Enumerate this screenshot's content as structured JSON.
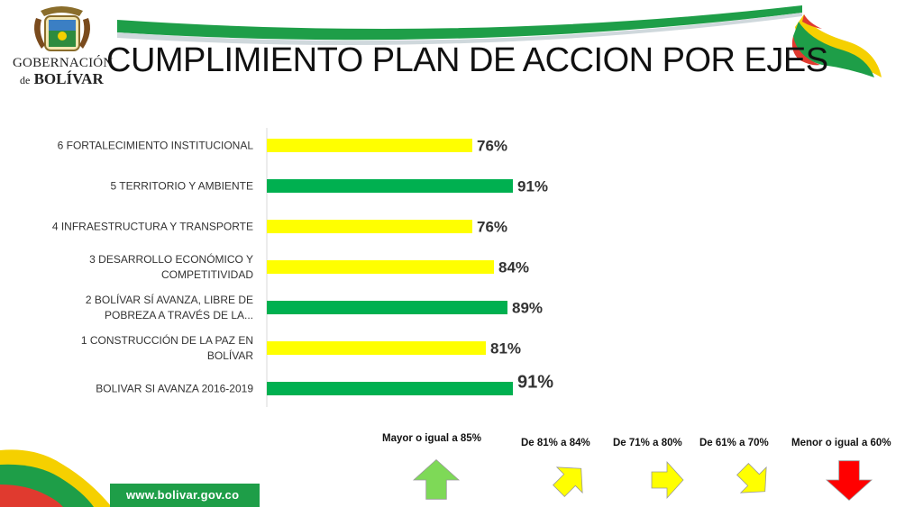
{
  "header": {
    "org_line1": "GOBERNACIÓN",
    "org_line2_de": "de",
    "org_line2_name": "BOLÍVAR",
    "title": "CUMPLIMIENTO PLAN DE ACCION POR EJES"
  },
  "footer": {
    "url": "www.bolivar.gov.co"
  },
  "colors": {
    "yellow": "#ffff00",
    "green": "#00b050",
    "up_arrow": "#7ed957",
    "diag_arrow": "#ffff00",
    "down_arrow": "#ff0000"
  },
  "chart_data": {
    "type": "bar",
    "orientation": "horizontal",
    "title": "CUMPLIMIENTO PLAN DE ACCION POR EJES",
    "categories": [
      [
        "6 FORTALECIMIENTO INSTITUCIONAL"
      ],
      [
        "5 TERRITORIO Y AMBIENTE"
      ],
      [
        "4 INFRAESTRUCTURA Y TRANSPORTE"
      ],
      [
        "3 DESARROLLO ECONÓMICO Y",
        "COMPETITIVIDAD"
      ],
      [
        "2 BOLÍVAR SÍ AVANZA, LIBRE DE",
        "POBREZA A TRAVÉS DE LA..."
      ],
      [
        "1 CONSTRUCCIÓN DE LA PAZ EN",
        "BOLÍVAR"
      ],
      [
        "BOLIVAR SI AVANZA 2016-2019"
      ]
    ],
    "values": [
      76,
      91,
      76,
      84,
      89,
      81,
      91
    ],
    "value_labels": [
      "76%",
      "91%",
      "76%",
      "84%",
      "89%",
      "81%",
      "91%"
    ],
    "bar_colors": [
      "yellow",
      "green",
      "yellow",
      "yellow",
      "green",
      "yellow",
      "green"
    ],
    "xlim": [
      0,
      100
    ],
    "xlabel": "",
    "ylabel": "",
    "grid": false
  },
  "legend": {
    "items": [
      {
        "label": "Mayor o igual a 85%",
        "arrow": "up"
      },
      {
        "label": "De 81% a 84%",
        "arrow": "up-right"
      },
      {
        "label": "De 71% a 80%",
        "arrow": "right"
      },
      {
        "label": "De 61% a 70%",
        "arrow": "down-right"
      },
      {
        "label": "Menor o igual a 60%",
        "arrow": "down"
      }
    ]
  }
}
